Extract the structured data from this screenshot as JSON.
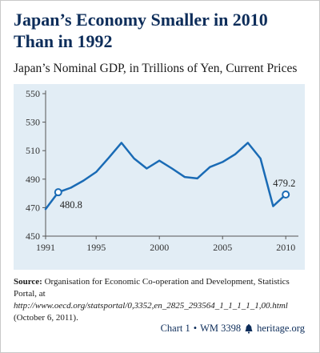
{
  "title": "Japan’s Economy Smaller in 2010 Than in 1992",
  "subtitle": "Japan’s Nominal GDP, in Trillions of Yen, Current Prices",
  "chart_data": {
    "type": "line",
    "title": "Japan’s Economy Smaller in 2010 Than in 1992",
    "subtitle": "Japan’s Nominal GDP, in Trillions of Yen, Current Prices",
    "x": [
      1991,
      1992,
      1993,
      1994,
      1995,
      1996,
      1997,
      1998,
      1999,
      2000,
      2001,
      2002,
      2003,
      2004,
      2005,
      2006,
      2007,
      2008,
      2009,
      2010
    ],
    "series": [
      {
        "values": [
          469,
          480.8,
          484,
          489,
          495,
          505,
          515.5,
          504.5,
          497.5,
          503,
          497.5,
          491.5,
          490.5,
          498.5,
          502,
          507.5,
          515.5,
          504.5,
          471,
          479.2
        ]
      }
    ],
    "xticks": [
      "1991",
      "1995",
      "2000",
      "2005",
      "2010"
    ],
    "yticks": [
      "550",
      "530",
      "510",
      "490",
      "470",
      "450"
    ],
    "ylim": [
      450,
      550
    ],
    "xlim": [
      1991,
      2011
    ],
    "grid": false,
    "line_color": "#1a6bb5",
    "background": "#e2edf5",
    "annotations": [
      {
        "x": 1992,
        "label": "480.8"
      },
      {
        "x": 2010,
        "label": "479.2"
      }
    ]
  },
  "source": {
    "label": "Source:",
    "text1": "Organisation for Economic Co-operation and Development, Statistics Portal, at",
    "url": "http://www.oecd.org/statsportal/0,3352,en_2825_293564_1_1_1_1_1,00.html",
    "text2": "(October 6, 2011)."
  },
  "footer": {
    "chart_label": "Chart 1",
    "separator": "•",
    "wm": "WM 3398",
    "brand": "heritage.org",
    "brand_color": "#0d2d5a"
  }
}
